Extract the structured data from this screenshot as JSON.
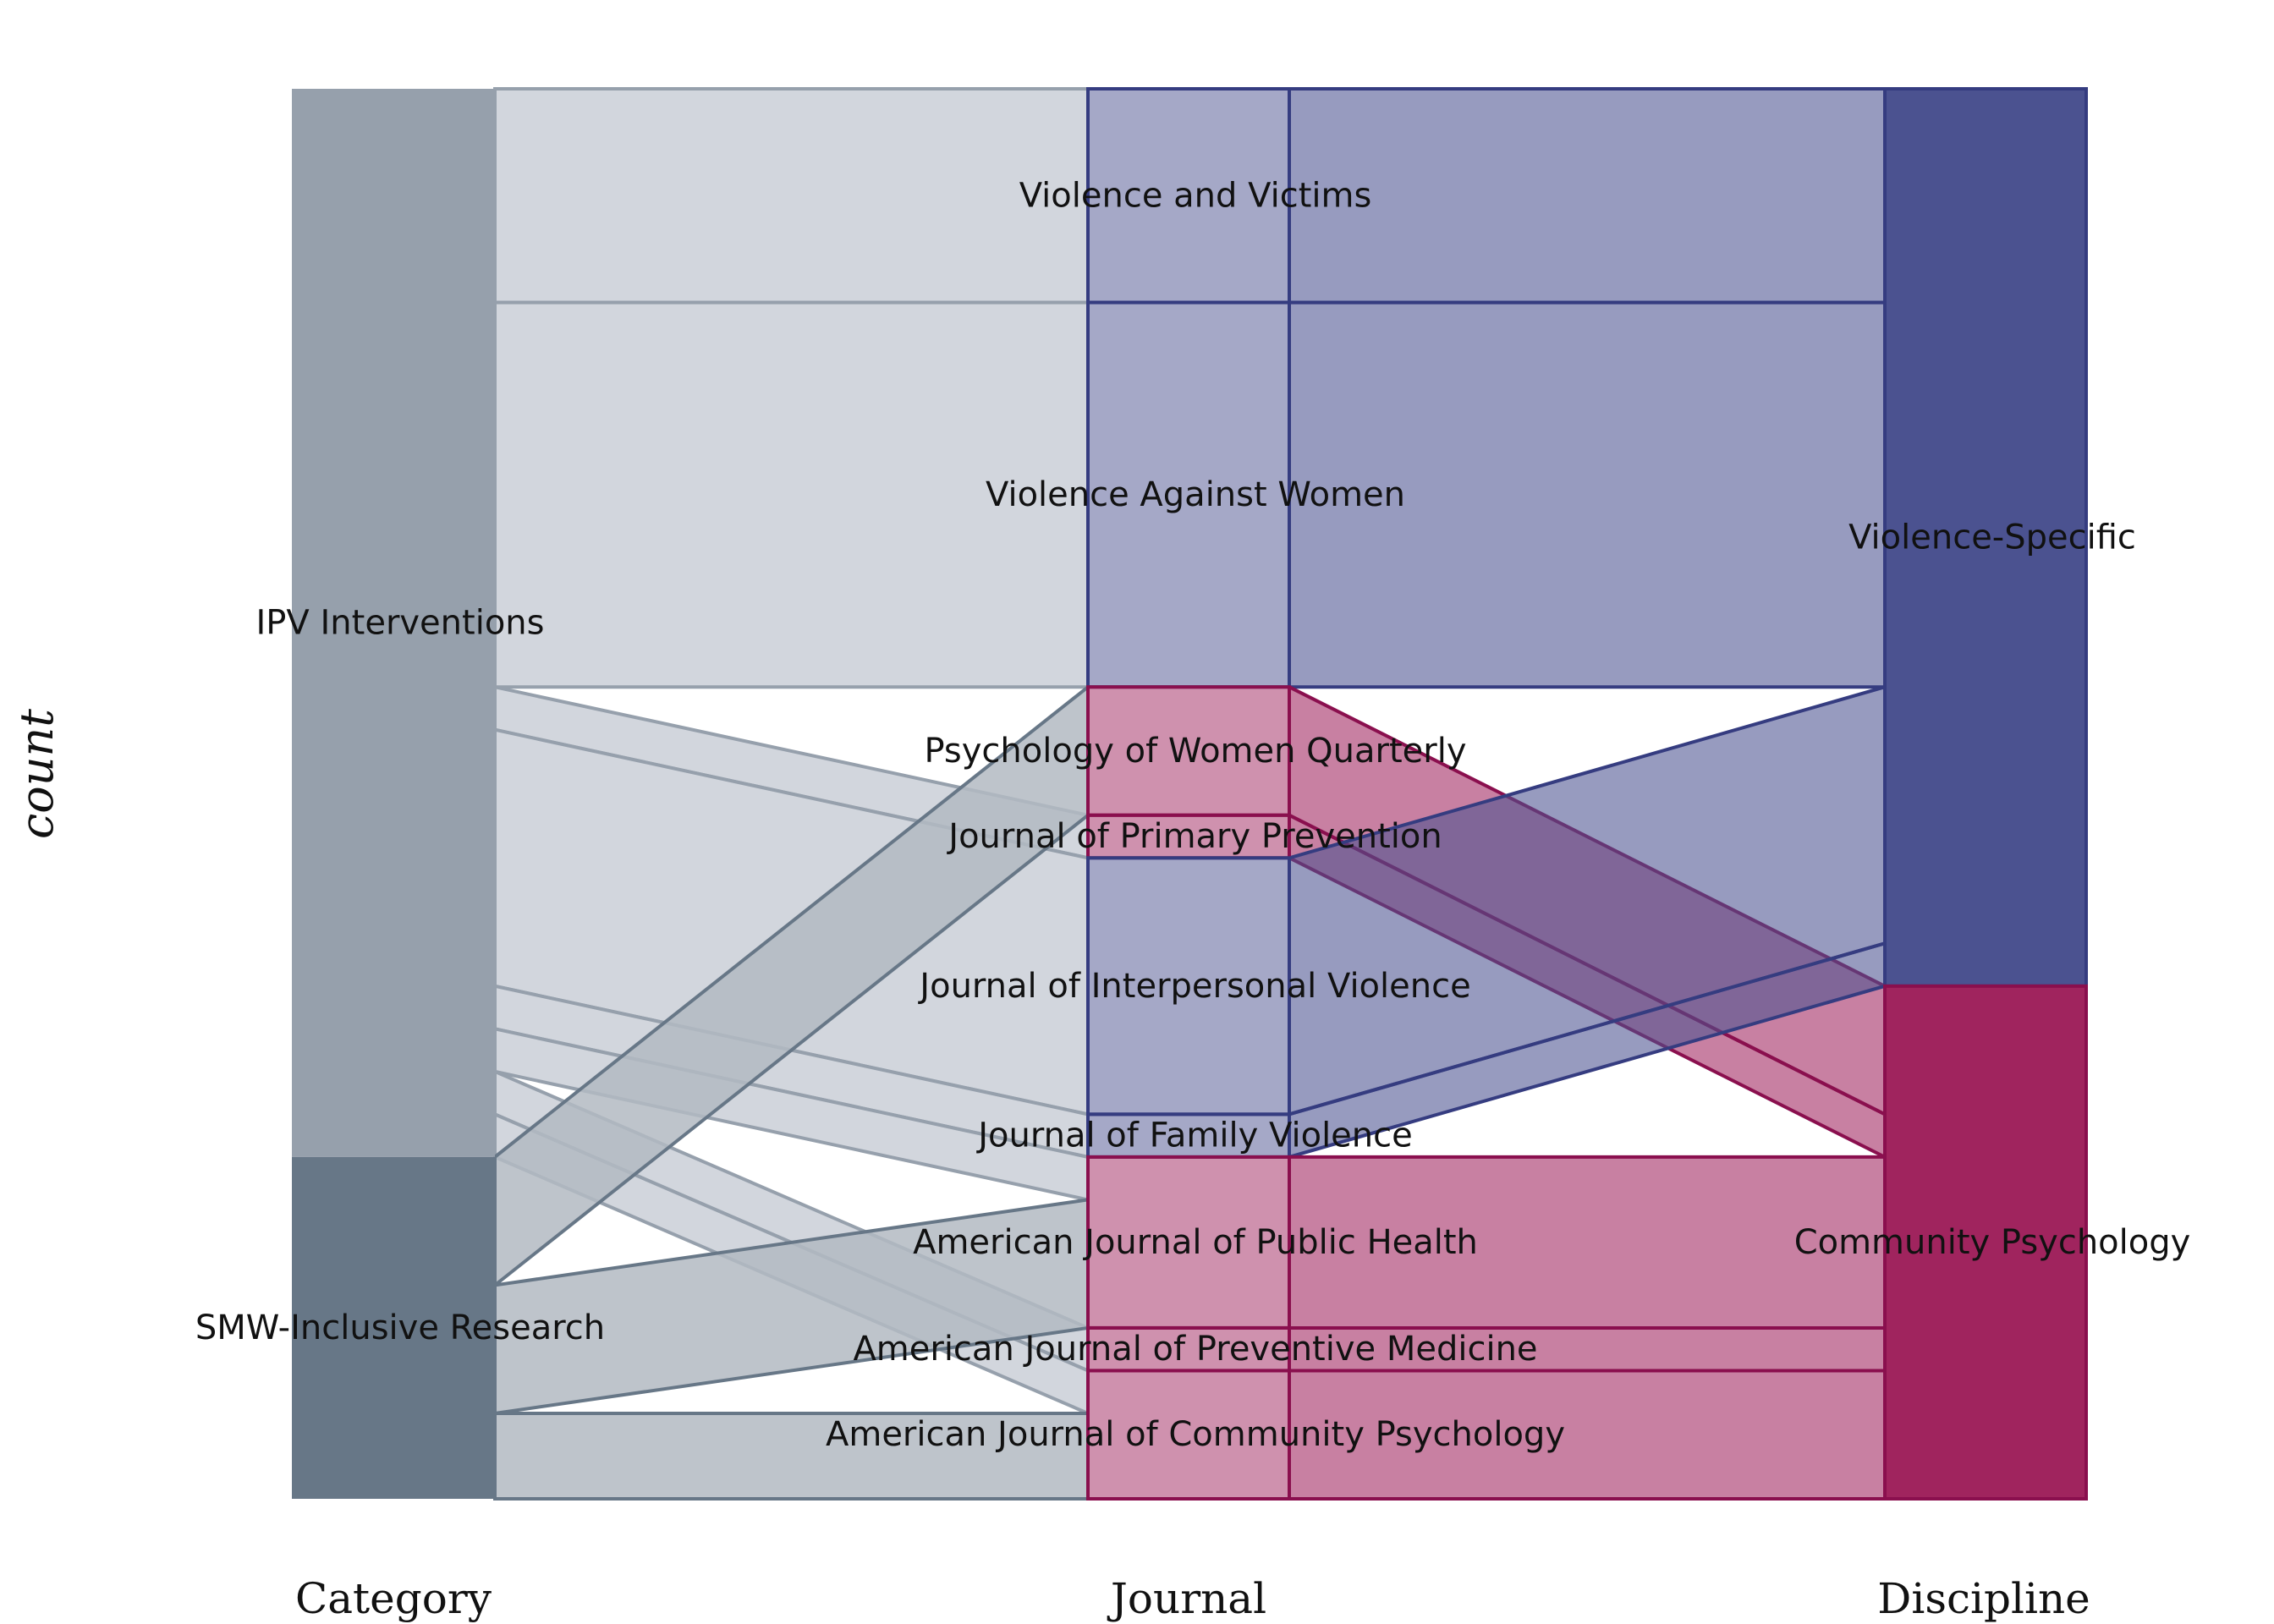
{
  "chart_data": {
    "type": "alluvial",
    "title": "",
    "ylabel": "count",
    "axes": [
      "Category",
      "Journal",
      "Discipline"
    ],
    "colors": {
      "ipv": "#96a0ac",
      "smw": "#677787",
      "violence_specific": "#4b5290",
      "community_psychology": "#a0245e",
      "violence_specific_stroke": "#353c80",
      "community_psychology_stroke": "#8a0f4e"
    },
    "strata": {
      "Category": [
        {
          "name": "IPV Interventions",
          "count": 25,
          "color": "ipv"
        },
        {
          "name": "SMW-Inclusive Research",
          "count": 8,
          "color": "smw"
        }
      ],
      "Journal": [
        {
          "name": "Violence and Victims",
          "count": 5,
          "discipline": "Violence-Specific"
        },
        {
          "name": "Violence Against Women",
          "count": 9,
          "discipline": "Violence-Specific"
        },
        {
          "name": "Psychology of Women Quarterly",
          "count": 3,
          "discipline": "Community Psychology"
        },
        {
          "name": "Journal of Primary Prevention",
          "count": 1,
          "discipline": "Community Psychology"
        },
        {
          "name": "Journal of Interpersonal Violence",
          "count": 6,
          "discipline": "Violence-Specific"
        },
        {
          "name": "Journal of Family Violence",
          "count": 1,
          "discipline": "Violence-Specific"
        },
        {
          "name": "American Journal of Public Health",
          "count": 4,
          "discipline": "Community Psychology"
        },
        {
          "name": "American Journal of Preventive Medicine",
          "count": 1,
          "discipline": "Community Psychology"
        },
        {
          "name": "American Journal of Community Psychology",
          "count": 3,
          "discipline": "Community Psychology"
        }
      ],
      "Discipline": [
        {
          "name": "Violence-Specific",
          "count": 21,
          "color": "violence_specific"
        },
        {
          "name": "Community Psychology",
          "count": 12,
          "color": "community_psychology"
        }
      ]
    },
    "flows": [
      {
        "category": "IPV Interventions",
        "journal": "Violence and Victims",
        "discipline": "Violence-Specific",
        "count": 5
      },
      {
        "category": "IPV Interventions",
        "journal": "Violence Against Women",
        "discipline": "Violence-Specific",
        "count": 9
      },
      {
        "category": "IPV Interventions",
        "journal": "Psychology of Women Quarterly",
        "discipline": "Community Psychology",
        "count": 0
      },
      {
        "category": "IPV Interventions",
        "journal": "Journal of Primary Prevention",
        "discipline": "Community Psychology",
        "count": 1
      },
      {
        "category": "IPV Interventions",
        "journal": "Journal of Interpersonal Violence",
        "discipline": "Violence-Specific",
        "count": 6
      },
      {
        "category": "IPV Interventions",
        "journal": "Journal of Family Violence",
        "discipline": "Violence-Specific",
        "count": 1
      },
      {
        "category": "IPV Interventions",
        "journal": "American Journal of Public Health",
        "discipline": "Community Psychology",
        "count": 1
      },
      {
        "category": "IPV Interventions",
        "journal": "American Journal of Preventive Medicine",
        "discipline": "Community Psychology",
        "count": 1
      },
      {
        "category": "IPV Interventions",
        "journal": "American Journal of Community Psychology",
        "discipline": "Community Psychology",
        "count": 1
      },
      {
        "category": "SMW-Inclusive Research",
        "journal": "Psychology of Women Quarterly",
        "discipline": "Community Psychology",
        "count": 3
      },
      {
        "category": "SMW-Inclusive Research",
        "journal": "American Journal of Public Health",
        "discipline": "Community Psychology",
        "count": 3
      },
      {
        "category": "SMW-Inclusive Research",
        "journal": "American Journal of Community Psychology",
        "discipline": "Community Psychology",
        "count": 2
      }
    ]
  }
}
